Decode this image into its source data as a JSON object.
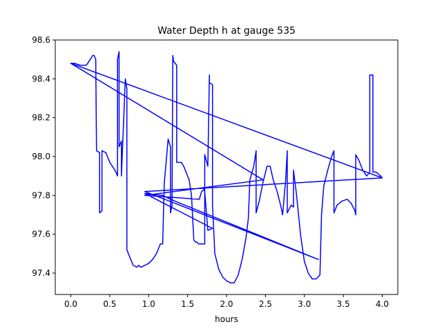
{
  "chart_data": {
    "type": "line",
    "title": "Water Depth h at gauge 535",
    "xlabel": "hours",
    "ylabel": "",
    "xlim": [
      -0.2,
      4.2
    ],
    "ylim": [
      97.29,
      98.6
    ],
    "xticks": [
      0.0,
      0.5,
      1.0,
      1.5,
      2.0,
      2.5,
      3.0,
      3.5,
      4.0
    ],
    "xtick_labels": [
      "0.0",
      "0.5",
      "1.0",
      "1.5",
      "2.0",
      "2.5",
      "3.0",
      "3.5",
      "4.0"
    ],
    "yticks": [
      97.4,
      97.6,
      97.8,
      98.0,
      98.2,
      98.4,
      98.6
    ],
    "ytick_labels": [
      "97.4",
      "97.6",
      "97.8",
      "98.0",
      "98.2",
      "98.4",
      "98.6"
    ],
    "grid": false,
    "legend": "none",
    "series": [
      {
        "color": "#0000ff",
        "x": [
          0.0,
          0.05,
          0.12,
          0.2,
          0.25,
          0.28,
          0.3,
          0.32,
          0.33,
          0.33,
          0.37,
          0.37,
          0.4,
          0.4,
          0.45,
          0.5,
          0.55,
          0.58,
          0.6,
          0.6,
          0.62,
          0.62,
          0.65,
          0.65,
          0.7,
          0.72,
          0.72,
          0.75,
          0.8,
          0.85,
          0.87,
          0.87,
          0.9,
          0.95,
          1.0,
          1.05,
          1.1,
          1.15,
          1.18,
          1.2,
          1.2,
          1.25,
          1.28,
          1.28,
          1.3,
          1.31,
          1.32,
          1.36,
          1.36,
          1.38,
          1.42,
          1.45,
          1.47,
          1.52,
          1.55,
          1.58,
          1.6,
          1.62,
          1.64,
          1.7,
          1.72,
          1.72,
          1.76,
          1.78,
          1.78,
          1.82,
          1.82,
          1.85,
          1.9,
          1.95,
          2.0,
          2.05,
          2.1,
          2.15,
          2.2,
          2.25,
          2.28,
          2.3,
          2.35,
          2.38,
          2.38,
          2.42,
          2.47,
          2.52,
          2.56,
          2.6,
          2.65,
          2.7,
          2.72,
          2.76,
          2.78,
          2.78,
          2.83,
          2.86,
          2.86,
          2.9,
          2.95,
          3.0,
          3.05,
          3.1,
          3.15,
          3.2,
          3.22,
          3.25,
          3.3,
          3.35,
          3.38,
          3.38,
          3.42,
          3.48,
          3.55,
          3.6,
          3.65,
          3.66,
          3.66,
          3.7,
          3.75,
          3.8,
          3.84,
          3.84,
          3.88,
          3.88,
          3.92,
          3.98,
          4.0,
          0.0,
          2.47,
          0.95,
          1.65,
          1.68,
          1.71,
          1.72,
          1.76,
          1.82,
          0.95,
          1.18,
          1.28,
          3.18,
          0.95,
          4.0
        ],
        "y": [
          98.48,
          98.48,
          98.47,
          98.47,
          98.5,
          98.52,
          98.52,
          98.5,
          98.03,
          98.03,
          98.02,
          97.71,
          97.72,
          98.03,
          98.02,
          97.97,
          97.94,
          97.92,
          97.9,
          98.5,
          98.54,
          98.05,
          98.08,
          97.9,
          98.4,
          98.35,
          97.52,
          97.49,
          97.44,
          97.43,
          97.44,
          97.44,
          97.43,
          97.44,
          97.45,
          97.47,
          97.5,
          97.55,
          97.55,
          97.86,
          97.86,
          98.09,
          98.05,
          97.71,
          97.75,
          98.52,
          98.49,
          98.47,
          97.97,
          97.97,
          97.97,
          97.95,
          97.93,
          97.88,
          97.8,
          97.57,
          97.56,
          97.56,
          97.55,
          97.55,
          97.55,
          98.01,
          97.95,
          98.42,
          98.38,
          98.37,
          97.75,
          97.5,
          97.42,
          97.38,
          97.36,
          97.35,
          97.35,
          97.39,
          97.47,
          97.58,
          97.68,
          97.88,
          97.95,
          98.03,
          97.71,
          97.77,
          97.87,
          97.95,
          97.95,
          97.88,
          97.82,
          97.74,
          97.7,
          97.88,
          98.03,
          97.71,
          97.75,
          97.74,
          97.93,
          97.8,
          97.6,
          97.46,
          97.4,
          97.37,
          97.37,
          97.39,
          97.7,
          97.85,
          97.93,
          98.0,
          98.03,
          97.71,
          97.75,
          97.77,
          97.78,
          97.76,
          97.72,
          97.7,
          98.01,
          97.98,
          97.93,
          97.9,
          97.92,
          98.42,
          98.42,
          97.92,
          97.92,
          97.9,
          97.89,
          98.48,
          97.88,
          97.8,
          97.78,
          97.82,
          97.83,
          97.82,
          97.62,
          97.63,
          97.81,
          97.8,
          97.78,
          97.47,
          97.82,
          97.89
        ]
      }
    ]
  }
}
